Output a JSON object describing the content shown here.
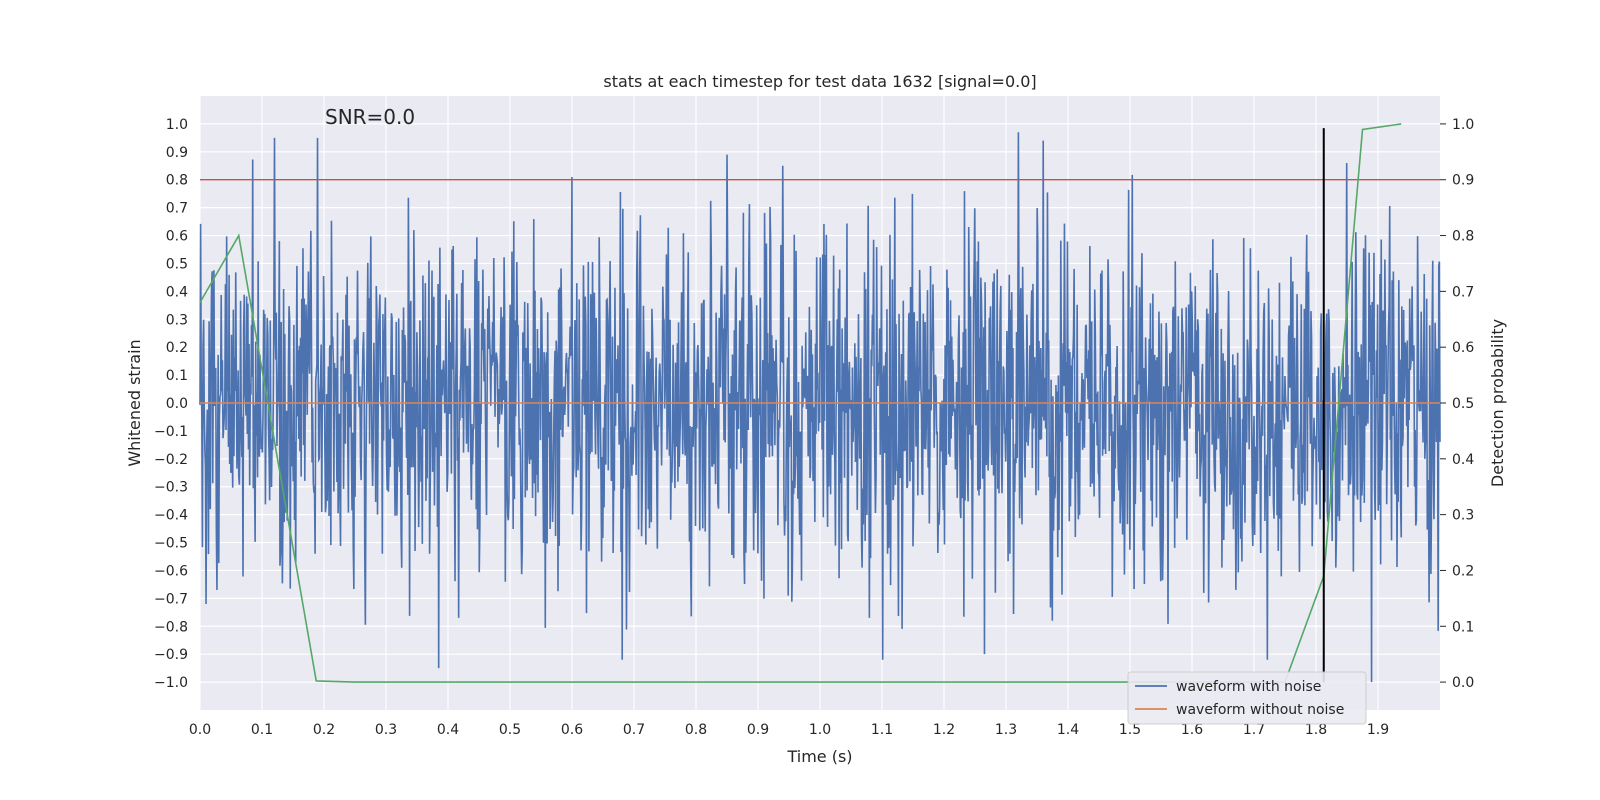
{
  "chart_data": {
    "type": "line",
    "title": "stats at each timestep for test data 1632 [signal=0.0]",
    "xlabel": "Time (s)",
    "ylabel": "Whitened strain",
    "y2label": "Detection probability",
    "annotation": "SNR=0.0",
    "xlim": [
      0.0,
      2.0
    ],
    "ylim": [
      -1.1,
      1.1
    ],
    "y2lim": [
      -0.05,
      1.05
    ],
    "x_ticks": [
      0.0,
      0.1,
      0.2,
      0.3,
      0.4,
      0.5,
      0.6,
      0.7,
      0.8,
      0.9,
      1.0,
      1.1,
      1.2,
      1.3,
      1.4,
      1.5,
      1.6,
      1.7,
      1.8,
      1.9
    ],
    "x_tick_labels": [
      "0.0",
      "0.1",
      "0.2",
      "0.3",
      "0.4",
      "0.5",
      "0.6",
      "0.7",
      "0.8",
      "0.9",
      "1.0",
      "1.1",
      "1.2",
      "1.3",
      "1.4",
      "1.5",
      "1.6",
      "1.7",
      "1.8",
      "1.9"
    ],
    "y_ticks": [
      1.0,
      0.9,
      0.8,
      0.7,
      0.6,
      0.5,
      0.4,
      0.3,
      0.2,
      0.1,
      0.0,
      -0.1,
      -0.2,
      -0.3,
      -0.4,
      -0.5,
      -0.6,
      -0.7,
      -0.8,
      -0.9,
      -1.0
    ],
    "y_tick_labels": [
      "1.0",
      "0.9",
      "0.8",
      "0.7",
      "0.6",
      "0.5",
      "0.4",
      "0.3",
      "0.2",
      "0.1",
      "0.0",
      "−0.1",
      "−0.2",
      "−0.3",
      "−0.4",
      "−0.5",
      "−0.6",
      "−0.7",
      "−0.8",
      "−0.9",
      "−1.0"
    ],
    "y2_ticks": [
      1.0,
      0.9,
      0.8,
      0.7,
      0.6,
      0.5,
      0.4,
      0.3,
      0.2,
      0.1,
      0.0
    ],
    "y2_tick_labels": [
      "1.0",
      "0.9",
      "0.8",
      "0.7",
      "0.6",
      "0.5",
      "0.4",
      "0.3",
      "0.2",
      "0.1",
      "0.0"
    ],
    "grid": true,
    "legend_position": "bottom-right",
    "noise_waveform": {
      "name": "waveform with noise",
      "color": "#4c72b0",
      "x_range": [
        0.0,
        2.0
      ],
      "n_samples": 2048,
      "approx_std": 0.3,
      "peak_values": [
        {
          "x": 0.12,
          "y": 0.95
        },
        {
          "x": 0.19,
          "y": 0.95
        },
        {
          "x": 0.85,
          "y": 0.89
        },
        {
          "x": 0.94,
          "y": 0.85
        },
        {
          "x": 1.32,
          "y": 0.97
        },
        {
          "x": 1.36,
          "y": 0.94
        },
        {
          "x": 1.85,
          "y": 0.86
        },
        {
          "x": 0.385,
          "y": -0.95
        },
        {
          "x": 1.265,
          "y": -0.9
        },
        {
          "x": 1.89,
          "y": -1.0
        },
        {
          "x": 0.01,
          "y": -0.72
        },
        {
          "x": 1.08,
          "y": -0.77
        }
      ]
    },
    "series": [
      {
        "name": "waveform without noise",
        "color": "#dd8452",
        "x": [
          0.0,
          2.0
        ],
        "values": [
          0.0,
          0.0
        ]
      },
      {
        "name": "detection probability",
        "color": "#55a868",
        "axis": "right",
        "x": [
          0.0,
          0.0625,
          0.125,
          0.1875,
          0.25,
          0.3125,
          0.5,
          1.0,
          1.5,
          1.75,
          1.8125,
          1.875,
          1.9375
        ],
        "values": [
          0.68,
          0.8,
          0.4,
          0.002,
          0.0,
          0.0,
          0.0,
          0.0,
          0.0,
          0.0,
          0.19,
          0.99,
          1.0
        ]
      }
    ],
    "threshold_line": {
      "value_y2": 0.9,
      "color": "#c44e52"
    },
    "marker_line": {
      "x": 1.8125,
      "y_range": [
        -1.0,
        0.985
      ],
      "color": "#000000"
    },
    "legend": [
      {
        "label": "waveform with noise",
        "color": "#4c72b0"
      },
      {
        "label": "waveform without noise",
        "color": "#dd8452"
      }
    ]
  },
  "colors": {
    "plot_bg": "#eaeaf2",
    "grid": "#ffffff",
    "text": "#262626"
  }
}
